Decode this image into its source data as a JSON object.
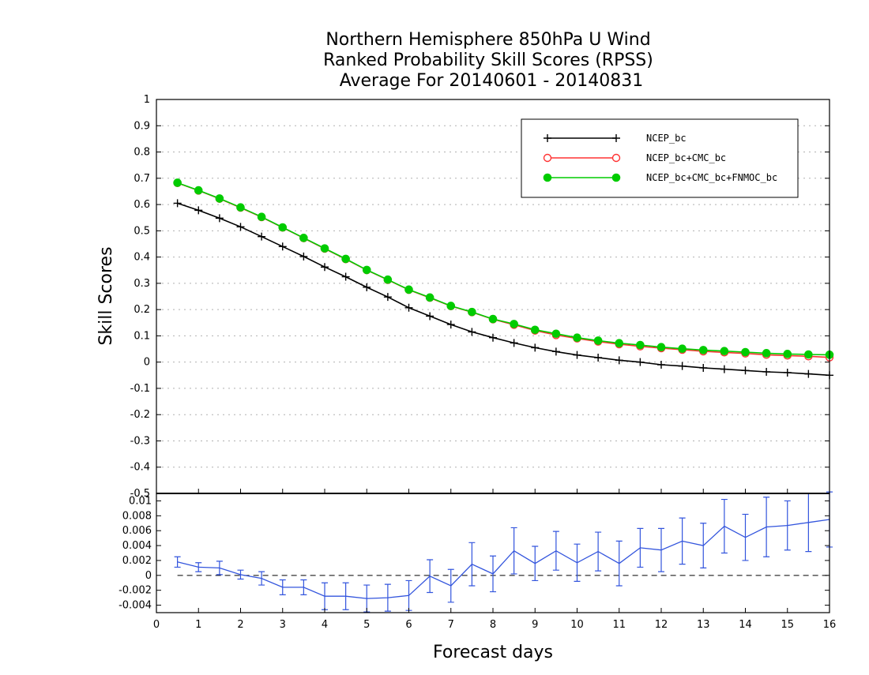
{
  "chart_data": [
    {
      "type": "line",
      "title": "Northern Hemisphere 850hPa U Wind",
      "subtitle": "Ranked Probability Skill Scores (RPSS)",
      "subtitle2": "Average For 20140601 - 20140831",
      "xlabel": "Forecast days",
      "ylabel": "Skill Scores",
      "xlim": [
        0,
        16
      ],
      "ylim": [
        -0.5,
        1
      ],
      "x_ticks": [
        "0",
        "1",
        "2",
        "3",
        "4",
        "5",
        "6",
        "7",
        "8",
        "9",
        "10",
        "11",
        "12",
        "13",
        "14",
        "15",
        "16"
      ],
      "y_ticks": [
        "1",
        "0.9",
        "0.8",
        "0.7",
        "0.6",
        "0.5",
        "0.4",
        "0.3",
        "0.2",
        "0.1",
        "0",
        "-0.1",
        "-0.2",
        "-0.3",
        "-0.4",
        "-0.5"
      ],
      "grid": true,
      "legend_position": "top-right",
      "x": [
        0.5,
        1,
        1.5,
        2,
        2.5,
        3,
        3.5,
        4,
        4.5,
        5,
        5.5,
        6,
        6.5,
        7,
        7.5,
        8,
        8.5,
        9,
        9.5,
        10,
        10.5,
        11,
        11.5,
        12,
        12.5,
        13,
        13.5,
        14,
        14.5,
        15,
        15.5,
        16
      ],
      "series": [
        {
          "name": "NCEP_bc",
          "color": "#000000",
          "marker": "plus",
          "values": [
            0.605,
            0.578,
            0.548,
            0.515,
            0.478,
            0.44,
            0.402,
            0.362,
            0.325,
            0.285,
            0.248,
            0.207,
            0.175,
            0.143,
            0.115,
            0.093,
            0.073,
            0.055,
            0.04,
            0.027,
            0.017,
            0.007,
            0.0,
            -0.01,
            -0.015,
            -0.022,
            -0.027,
            -0.032,
            -0.037,
            -0.04,
            -0.045,
            -0.05
          ]
        },
        {
          "name": "NCEP_bc+CMC_bc",
          "color": "#ff3333",
          "marker": "open-circle",
          "values": [
            0.682,
            0.653,
            0.622,
            0.588,
            0.552,
            0.512,
            0.472,
            0.432,
            0.392,
            0.35,
            0.313,
            0.275,
            0.245,
            0.213,
            0.19,
            0.163,
            0.142,
            0.12,
            0.103,
            0.09,
            0.078,
            0.068,
            0.06,
            0.053,
            0.047,
            0.041,
            0.037,
            0.033,
            0.028,
            0.025,
            0.022,
            0.018
          ]
        },
        {
          "name": "NCEP_bc+CMC_bc+FNMOC_bc",
          "color": "#00cc00",
          "marker": "filled-circle",
          "values": [
            0.683,
            0.654,
            0.623,
            0.589,
            0.553,
            0.513,
            0.473,
            0.433,
            0.393,
            0.351,
            0.314,
            0.276,
            0.246,
            0.214,
            0.191,
            0.164,
            0.145,
            0.123,
            0.108,
            0.093,
            0.082,
            0.072,
            0.065,
            0.057,
            0.051,
            0.046,
            0.042,
            0.038,
            0.034,
            0.031,
            0.029,
            0.028
          ]
        }
      ]
    },
    {
      "type": "line",
      "xlim": [
        0,
        16
      ],
      "ylim": [
        -0.005,
        0.011
      ],
      "y_ticks": [
        "0.01",
        "0.008",
        "0.006",
        "0.004",
        "0.002",
        "0",
        "-0.002",
        "-0.004"
      ],
      "reference_line": 0,
      "series": [
        {
          "name": "",
          "color": "#3355dd",
          "marker": "error-bar",
          "x": [
            0.5,
            1,
            1.5,
            2,
            2.5,
            3,
            3.5,
            4,
            4.5,
            5,
            5.5,
            6,
            6.5,
            7,
            7.5,
            8,
            8.5,
            9,
            9.5,
            10,
            10.5,
            11,
            11.5,
            12,
            12.5,
            13,
            13.5,
            14,
            14.5,
            15,
            15.5,
            16
          ],
          "values": [
            0.0018,
            0.0011,
            0.001,
            0.0001,
            -0.0004,
            -0.0016,
            -0.0016,
            -0.0028,
            -0.0028,
            -0.0031,
            -0.003,
            -0.0027,
            -0.0001,
            -0.0014,
            0.0015,
            0.0002,
            0.0033,
            0.0016,
            0.0033,
            0.0017,
            0.0032,
            0.0016,
            0.0037,
            0.0034,
            0.0046,
            0.004,
            0.0066,
            0.0051,
            0.0065,
            0.0067,
            0.0071,
            0.0075
          ],
          "error": [
            0.0007,
            0.0006,
            0.0009,
            0.0006,
            0.0009,
            0.001,
            0.001,
            0.0018,
            0.0018,
            0.0018,
            0.0018,
            0.002,
            0.0022,
            0.0022,
            0.0029,
            0.0024,
            0.0031,
            0.0023,
            0.0026,
            0.0025,
            0.0026,
            0.003,
            0.0026,
            0.0029,
            0.0031,
            0.003,
            0.0036,
            0.0031,
            0.004,
            0.0033,
            0.0039,
            0.0037
          ]
        }
      ]
    }
  ]
}
